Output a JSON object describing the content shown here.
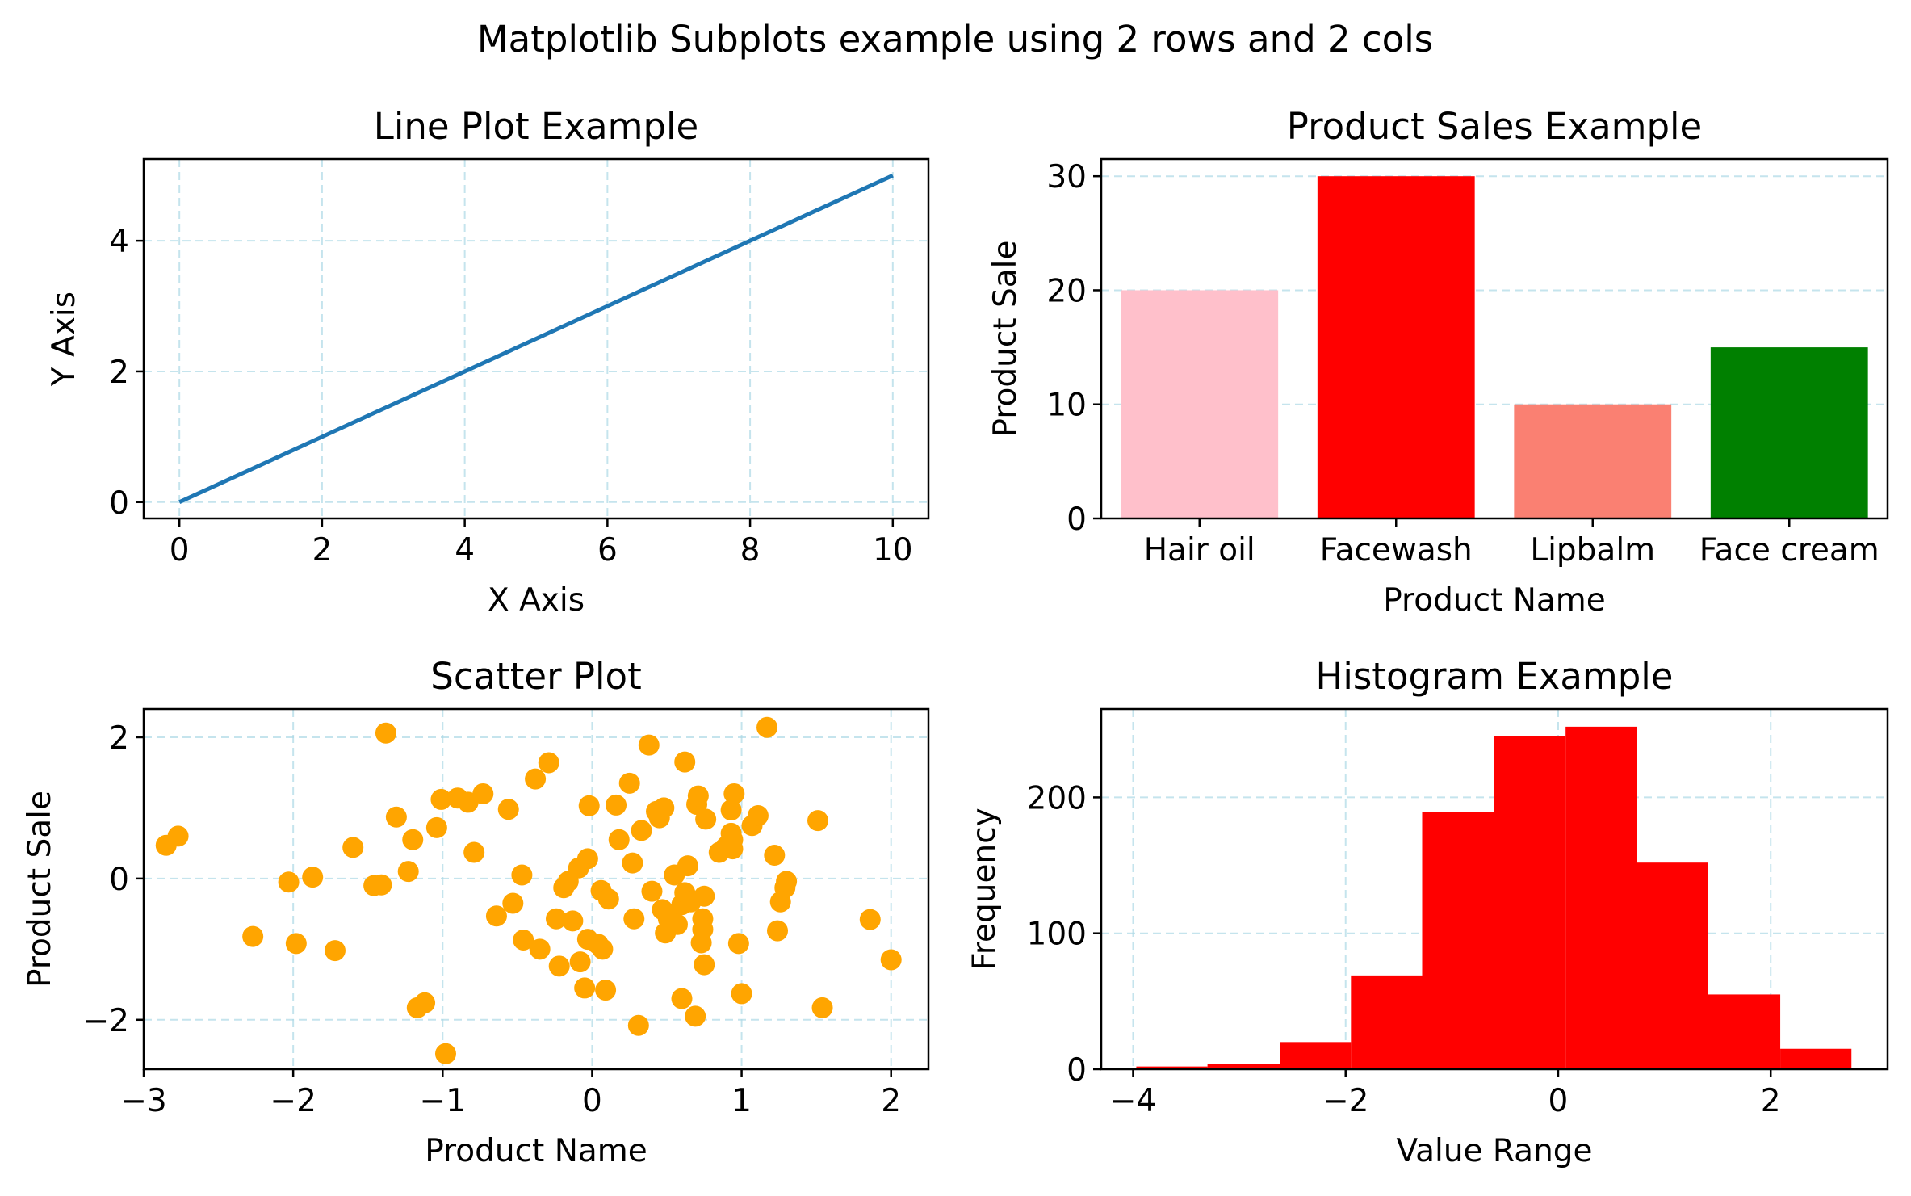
{
  "figure": {
    "suptitle": "Matplotlib Subplots example using 2 rows and 2 cols"
  },
  "colors": {
    "line": "#1f77b4",
    "scatter": "#ffa500",
    "histogram": "#ff0000",
    "grid": "#add8e6"
  },
  "chart_data": [
    {
      "type": "line",
      "title": "Line Plot Example",
      "xlabel": "X Axis",
      "ylabel": "Y Axis",
      "x": [
        0,
        10
      ],
      "y": [
        0,
        5
      ],
      "xlim": [
        -0.5,
        10.5
      ],
      "ylim": [
        -0.25,
        5.25
      ],
      "xticks": [
        0,
        2,
        4,
        6,
        8,
        10
      ],
      "yticks": [
        0,
        2,
        4
      ],
      "grid": true
    },
    {
      "type": "bar",
      "title": "Product Sales Example",
      "xlabel": "Product Name",
      "ylabel": "Product Sale",
      "categories": [
        "Hair oil",
        "Facewash",
        "Lipbalm",
        "Face cream"
      ],
      "values": [
        20,
        30,
        10,
        15
      ],
      "bar_colors": [
        "#ffc0cb",
        "#ff0000",
        "#fa8072",
        "#008000"
      ],
      "ylim": [
        0,
        31.5
      ],
      "yticks": [
        0,
        10,
        20,
        30
      ],
      "grid": true
    },
    {
      "type": "scatter",
      "title": "Scatter Plot",
      "xlabel": "Product Name",
      "ylabel": "Product Sale",
      "xlim": [
        -3.0,
        2.25
      ],
      "ylim": [
        -2.7,
        2.4
      ],
      "xticks": [
        -3,
        -2,
        -1,
        0,
        1,
        2
      ],
      "yticks": [
        -2,
        0,
        2
      ],
      "grid": true,
      "points": [
        [
          -2.85,
          0.47
        ],
        [
          -2.77,
          0.6
        ],
        [
          -2.27,
          -0.82
        ],
        [
          -2.03,
          -0.05
        ],
        [
          -1.98,
          -0.92
        ],
        [
          -1.87,
          0.02
        ],
        [
          -1.72,
          -1.02
        ],
        [
          -1.6,
          0.44
        ],
        [
          -1.38,
          2.06
        ],
        [
          -1.46,
          -0.1
        ],
        [
          -1.41,
          -0.09
        ],
        [
          -1.31,
          0.87
        ],
        [
          -1.23,
          0.1
        ],
        [
          -1.2,
          0.55
        ],
        [
          -1.17,
          -1.83
        ],
        [
          -1.12,
          -1.76
        ],
        [
          -1.04,
          0.72
        ],
        [
          -1.01,
          1.12
        ],
        [
          -0.98,
          -2.48
        ],
        [
          -0.9,
          1.14
        ],
        [
          -0.83,
          1.08
        ],
        [
          -0.79,
          0.37
        ],
        [
          -0.73,
          1.2
        ],
        [
          -0.64,
          -0.53
        ],
        [
          -0.56,
          0.98
        ],
        [
          -0.53,
          -0.35
        ],
        [
          -0.47,
          0.05
        ],
        [
          -0.46,
          -0.87
        ],
        [
          -0.38,
          1.41
        ],
        [
          -0.35,
          -1.0
        ],
        [
          -0.29,
          1.64
        ],
        [
          -0.24,
          -0.57
        ],
        [
          -0.22,
          -1.24
        ],
        [
          -0.19,
          -0.13
        ],
        [
          -0.16,
          -0.04
        ],
        [
          -0.13,
          -0.6
        ],
        [
          -0.09,
          0.15
        ],
        [
          -0.08,
          -1.18
        ],
        [
          -0.05,
          -1.55
        ],
        [
          -0.03,
          -0.86
        ],
        [
          -0.03,
          0.28
        ],
        [
          -0.02,
          1.03
        ],
        [
          0.04,
          -0.93
        ],
        [
          0.06,
          -0.17
        ],
        [
          0.07,
          -1.0
        ],
        [
          0.09,
          -1.58
        ],
        [
          0.11,
          -0.29
        ],
        [
          0.16,
          1.04
        ],
        [
          0.18,
          0.55
        ],
        [
          0.25,
          1.35
        ],
        [
          0.27,
          0.22
        ],
        [
          0.28,
          -0.57
        ],
        [
          0.31,
          -2.08
        ],
        [
          0.33,
          0.68
        ],
        [
          0.38,
          1.89
        ],
        [
          0.4,
          -0.18
        ],
        [
          0.43,
          0.95
        ],
        [
          0.45,
          0.86
        ],
        [
          0.47,
          -0.44
        ],
        [
          0.48,
          1.0
        ],
        [
          0.49,
          -0.77
        ],
        [
          0.51,
          -0.57
        ],
        [
          0.55,
          0.05
        ],
        [
          0.57,
          -0.65
        ],
        [
          0.6,
          -0.37
        ],
        [
          0.6,
          -1.7
        ],
        [
          0.62,
          -0.2
        ],
        [
          0.62,
          1.65
        ],
        [
          0.64,
          0.18
        ],
        [
          0.66,
          -0.33
        ],
        [
          0.69,
          -1.95
        ],
        [
          0.7,
          1.05
        ],
        [
          0.71,
          1.17
        ],
        [
          0.73,
          -0.91
        ],
        [
          0.74,
          -0.57
        ],
        [
          0.74,
          -0.72
        ],
        [
          0.75,
          -1.22
        ],
        [
          0.75,
          -0.25
        ],
        [
          0.76,
          0.84
        ],
        [
          0.85,
          0.37
        ],
        [
          0.9,
          0.46
        ],
        [
          0.93,
          0.97
        ],
        [
          0.93,
          0.64
        ],
        [
          0.94,
          0.55
        ],
        [
          0.94,
          0.42
        ],
        [
          0.95,
          1.2
        ],
        [
          0.98,
          -0.92
        ],
        [
          1.0,
          -1.63
        ],
        [
          1.07,
          0.75
        ],
        [
          1.11,
          0.89
        ],
        [
          1.17,
          2.14
        ],
        [
          1.22,
          0.33
        ],
        [
          1.24,
          -0.74
        ],
        [
          1.26,
          -0.33
        ],
        [
          1.29,
          -0.13
        ],
        [
          1.3,
          -0.04
        ],
        [
          1.51,
          0.82
        ],
        [
          1.54,
          -1.83
        ],
        [
          1.86,
          -0.58
        ],
        [
          2.0,
          -1.15
        ]
      ]
    },
    {
      "type": "bar",
      "title": "Histogram Example",
      "xlabel": "Value Range",
      "ylabel": "Frequency",
      "bin_edges": [
        -3.97,
        -3.3,
        -2.62,
        -1.95,
        -1.28,
        -0.6,
        0.07,
        0.74,
        1.41,
        2.09,
        2.76
      ],
      "counts": [
        2,
        4,
        20,
        69,
        189,
        245,
        252,
        152,
        55,
        15
      ],
      "xlim": [
        -4.3,
        3.1
      ],
      "ylim": [
        0,
        265
      ],
      "xticks": [
        -4,
        -2,
        0,
        2
      ],
      "yticks": [
        0,
        100,
        200
      ],
      "grid": true
    }
  ]
}
